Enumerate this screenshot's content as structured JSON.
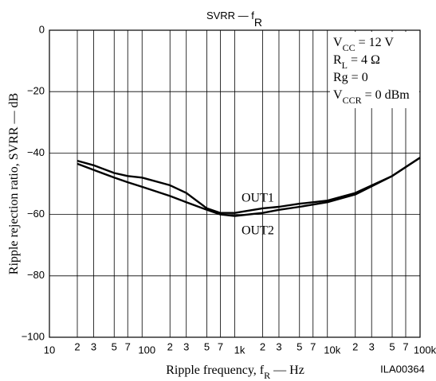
{
  "chart_data": {
    "type": "line",
    "title": [
      "SVRR — f",
      "R"
    ],
    "x_label": [
      "Ripple frequency, f",
      "R",
      " — Hz"
    ],
    "y_label": [
      "Ripple rejection ratio, SVRR — dB"
    ],
    "figure_code": "ILA00364",
    "conditions": [
      [
        "V",
        "CC",
        " = 12 V"
      ],
      [
        "R",
        "L",
        " = 4 Ω"
      ],
      [
        "Rg = 0"
      ],
      [
        "V",
        "CCR",
        " = 0 dBm"
      ]
    ],
    "log_x": true,
    "grid": true,
    "xlim": [
      10,
      100000
    ],
    "ylim": [
      -100,
      0
    ],
    "xticks": [
      10,
      {
        "value": 20,
        "label": "2"
      },
      {
        "value": 30,
        "label": "3"
      },
      {
        "value": 50,
        "label": "5"
      },
      {
        "value": 70,
        "label": "7"
      },
      100,
      {
        "value": 200,
        "label": "2"
      },
      {
        "value": 300,
        "label": "3"
      },
      {
        "value": 500,
        "label": "5"
      },
      {
        "value": 700,
        "label": "7"
      },
      {
        "value": 1000,
        "label": "1k"
      },
      {
        "value": 2000,
        "label": "2"
      },
      {
        "value": 3000,
        "label": "3"
      },
      {
        "value": 5000,
        "label": "5"
      },
      {
        "value": 7000,
        "label": "7"
      },
      {
        "value": 10000,
        "label": "10k"
      },
      {
        "value": 20000,
        "label": "2"
      },
      {
        "value": 30000,
        "label": "3"
      },
      {
        "value": 50000,
        "label": "5"
      },
      {
        "value": 70000,
        "label": "7"
      },
      {
        "value": 100000,
        "label": "100k"
      }
    ],
    "yticks": [
      0,
      {
        "value": -20,
        "label": "−20"
      },
      {
        "value": -40,
        "label": "−40"
      },
      {
        "value": -60,
        "label": "−60"
      },
      {
        "value": -80,
        "label": "−80"
      },
      {
        "value": -100,
        "label": "−100"
      }
    ],
    "x": [
      20,
      30,
      50,
      70,
      100,
      200,
      300,
      500,
      700,
      1000,
      2000,
      3000,
      5000,
      10000,
      20000,
      50000,
      100000
    ],
    "series": [
      {
        "name": "OUT1",
        "color": "#000000",
        "values": [
          -42.5,
          -44,
          -46.5,
          -47.5,
          -48,
          -50.5,
          -53,
          -58,
          -59.5,
          -59.5,
          -58,
          -57.5,
          -56.5,
          -55.5,
          -53,
          -47.5,
          -41.5
        ]
      },
      {
        "name": "OUT2",
        "color": "#000000",
        "values": [
          -43.5,
          -45.5,
          -48,
          -49.5,
          -51,
          -54,
          -56,
          -58.5,
          -60,
          -60.5,
          -59.5,
          -58.5,
          -57.5,
          -56,
          -53.5,
          -47.5,
          -41.5
        ]
      }
    ]
  }
}
